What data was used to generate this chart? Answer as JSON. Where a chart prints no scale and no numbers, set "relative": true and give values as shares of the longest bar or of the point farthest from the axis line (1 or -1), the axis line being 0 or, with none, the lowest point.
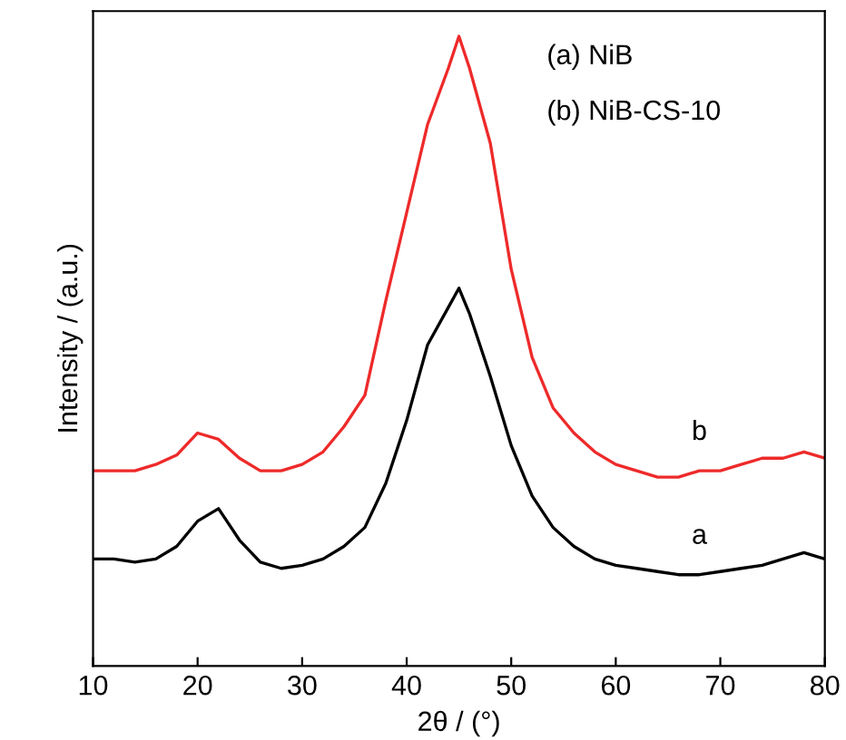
{
  "chart_data": {
    "type": "line",
    "xlabel": "2θ / (°)",
    "ylabel": "Intensity / (a.u.)",
    "relative": true,
    "tick_labels": "x",
    "xlim": [
      10,
      80
    ],
    "xticks": [
      10,
      20,
      30,
      40,
      50,
      60,
      70,
      80
    ],
    "x": [
      10,
      12,
      14,
      16,
      18,
      20,
      22,
      24,
      26,
      28,
      30,
      32,
      34,
      36,
      38,
      40,
      42,
      44,
      45,
      46,
      48,
      50,
      52,
      54,
      56,
      58,
      60,
      62,
      64,
      66,
      68,
      70,
      72,
      74,
      76,
      78,
      80
    ],
    "series": [
      {
        "name": "a",
        "color": "#000000",
        "values": [
          0.17,
          0.17,
          0.165,
          0.17,
          0.19,
          0.23,
          0.25,
          0.2,
          0.165,
          0.155,
          0.16,
          0.17,
          0.19,
          0.22,
          0.29,
          0.39,
          0.51,
          0.57,
          0.6,
          0.56,
          0.46,
          0.35,
          0.27,
          0.22,
          0.19,
          0.17,
          0.16,
          0.155,
          0.15,
          0.145,
          0.145,
          0.15,
          0.155,
          0.16,
          0.17,
          0.18,
          0.17
        ]
      },
      {
        "name": "b",
        "color": "#ee2a2a",
        "values": [
          0.31,
          0.31,
          0.31,
          0.32,
          0.335,
          0.37,
          0.36,
          0.33,
          0.31,
          0.31,
          0.32,
          0.34,
          0.38,
          0.43,
          0.58,
          0.72,
          0.86,
          0.95,
          1.0,
          0.95,
          0.83,
          0.63,
          0.49,
          0.41,
          0.37,
          0.34,
          0.32,
          0.31,
          0.3,
          0.3,
          0.31,
          0.31,
          0.32,
          0.33,
          0.33,
          0.34,
          0.33
        ]
      }
    ],
    "annotations": [
      "(a) NiB",
      "(b) NiB-CS-10"
    ],
    "grid": false,
    "legend": false
  }
}
